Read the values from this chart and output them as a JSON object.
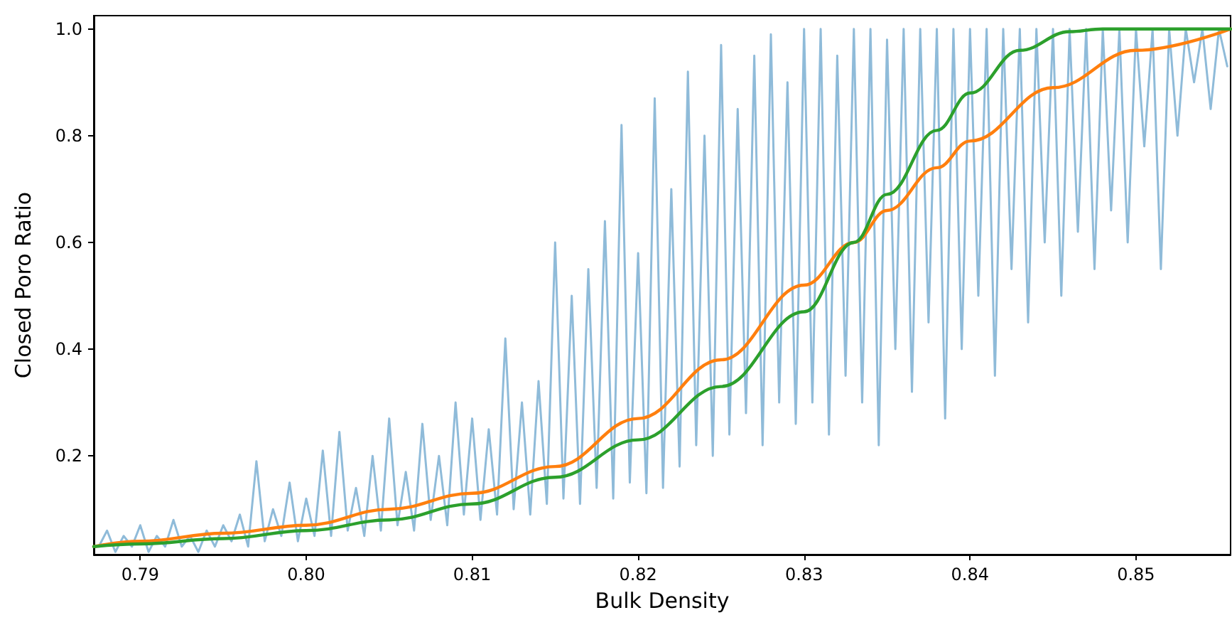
{
  "chart_data": {
    "type": "line",
    "xlabel": "Bulk Density",
    "ylabel": "Closed Poro Ratio",
    "xlim": [
      0.7872,
      0.8557
    ],
    "ylim": [
      0.015,
      1.025
    ],
    "xticks": [
      {
        "value": 0.79,
        "label": "0.79"
      },
      {
        "value": 0.8,
        "label": "0.80"
      },
      {
        "value": 0.81,
        "label": "0.81"
      },
      {
        "value": 0.82,
        "label": "0.82"
      },
      {
        "value": 0.83,
        "label": "0.83"
      },
      {
        "value": 0.84,
        "label": "0.84"
      },
      {
        "value": 0.85,
        "label": "0.85"
      }
    ],
    "yticks": [
      {
        "value": 0.2,
        "label": "0.2"
      },
      {
        "value": 0.4,
        "label": "0.4"
      },
      {
        "value": 0.6,
        "label": "0.6"
      },
      {
        "value": 0.8,
        "label": "0.8"
      },
      {
        "value": 1,
        "label": "1.0"
      }
    ],
    "grid": false,
    "marker": "none",
    "line_style": "solid",
    "series": [
      {
        "color": "#8fbbd9",
        "x": [
          0.7875,
          0.788,
          0.7885,
          0.789,
          0.7895,
          0.79,
          0.7905,
          0.791,
          0.7915,
          0.792,
          0.7925,
          0.793,
          0.7935,
          0.794,
          0.7945,
          0.795,
          0.7955,
          0.796,
          0.7965,
          0.797,
          0.7975,
          0.798,
          0.7985,
          0.799,
          0.7995,
          0.8,
          0.8005,
          0.801,
          0.8015,
          0.802,
          0.8025,
          0.803,
          0.8035,
          0.804,
          0.8045,
          0.805,
          0.8055,
          0.806,
          0.8065,
          0.807,
          0.8075,
          0.808,
          0.8085,
          0.809,
          0.8095,
          0.81,
          0.8105,
          0.811,
          0.8115,
          0.812,
          0.8125,
          0.813,
          0.8135,
          0.814,
          0.8145,
          0.815,
          0.8155,
          0.816,
          0.8165,
          0.817,
          0.8175,
          0.818,
          0.8185,
          0.819,
          0.8195,
          0.82,
          0.8205,
          0.821,
          0.8215,
          0.822,
          0.8225,
          0.823,
          0.8235,
          0.824,
          0.8245,
          0.825,
          0.8255,
          0.826,
          0.8265,
          0.827,
          0.8275,
          0.828,
          0.8285,
          0.829,
          0.8295,
          0.83,
          0.8305,
          0.831,
          0.8315,
          0.832,
          0.8325,
          0.833,
          0.8335,
          0.834,
          0.8345,
          0.835,
          0.8355,
          0.836,
          0.8365,
          0.837,
          0.8375,
          0.838,
          0.8385,
          0.839,
          0.8395,
          0.84,
          0.8405,
          0.841,
          0.8415,
          0.842,
          0.8425,
          0.843,
          0.8435,
          0.844,
          0.8445,
          0.845,
          0.8455,
          0.846,
          0.8465,
          0.847,
          0.8475,
          0.848,
          0.8485,
          0.849,
          0.8495,
          0.85,
          0.8505,
          0.851,
          0.8515,
          0.852,
          0.8525,
          0.853,
          0.8535,
          0.854,
          0.8545,
          0.855,
          0.8555
        ],
        "values": [
          0.03,
          0.06,
          0.02,
          0.05,
          0.03,
          0.07,
          0.02,
          0.05,
          0.03,
          0.08,
          0.03,
          0.05,
          0.02,
          0.06,
          0.03,
          0.07,
          0.04,
          0.09,
          0.03,
          0.19,
          0.04,
          0.1,
          0.05,
          0.15,
          0.04,
          0.12,
          0.05,
          0.21,
          0.05,
          0.245,
          0.06,
          0.14,
          0.05,
          0.2,
          0.06,
          0.27,
          0.07,
          0.17,
          0.06,
          0.26,
          0.08,
          0.2,
          0.07,
          0.3,
          0.09,
          0.27,
          0.08,
          0.25,
          0.09,
          0.42,
          0.1,
          0.3,
          0.09,
          0.34,
          0.11,
          0.6,
          0.12,
          0.5,
          0.11,
          0.55,
          0.14,
          0.64,
          0.12,
          0.82,
          0.15,
          0.58,
          0.13,
          0.87,
          0.14,
          0.7,
          0.18,
          0.92,
          0.22,
          0.8,
          0.2,
          0.97,
          0.24,
          0.85,
          0.28,
          0.95,
          0.22,
          0.99,
          0.3,
          0.9,
          0.26,
          1.0,
          0.3,
          1.0,
          0.24,
          0.95,
          0.35,
          1.0,
          0.3,
          1.0,
          0.22,
          0.98,
          0.4,
          1.0,
          0.32,
          1.0,
          0.45,
          1.0,
          0.27,
          1.0,
          0.4,
          1.0,
          0.5,
          1.0,
          0.35,
          1.0,
          0.55,
          1.0,
          0.45,
          1.0,
          0.6,
          1.0,
          0.5,
          1.0,
          0.62,
          1.0,
          0.55,
          1.0,
          0.66,
          1.0,
          0.6,
          1.0,
          0.78,
          1.0,
          0.55,
          1.0,
          0.8,
          1.0,
          0.9,
          1.0,
          0.85,
          1.0,
          0.93
        ]
      },
      {
        "color": "#ff7f0e",
        "x": [
          0.7872,
          0.79,
          0.795,
          0.8,
          0.805,
          0.81,
          0.815,
          0.82,
          0.825,
          0.83,
          0.833,
          0.835,
          0.838,
          0.84,
          0.845,
          0.85,
          0.8557
        ],
        "values": [
          0.03,
          0.04,
          0.055,
          0.07,
          0.1,
          0.13,
          0.18,
          0.27,
          0.38,
          0.52,
          0.6,
          0.66,
          0.74,
          0.79,
          0.89,
          0.96,
          1.0
        ]
      },
      {
        "color": "#2ca02c",
        "x": [
          0.7872,
          0.79,
          0.795,
          0.8,
          0.805,
          0.81,
          0.815,
          0.82,
          0.825,
          0.83,
          0.833,
          0.835,
          0.838,
          0.84,
          0.843,
          0.846,
          0.848,
          0.8557
        ],
        "values": [
          0.03,
          0.035,
          0.045,
          0.06,
          0.08,
          0.11,
          0.16,
          0.23,
          0.33,
          0.47,
          0.6,
          0.69,
          0.81,
          0.88,
          0.96,
          0.995,
          1.0,
          1.0
        ]
      }
    ]
  }
}
